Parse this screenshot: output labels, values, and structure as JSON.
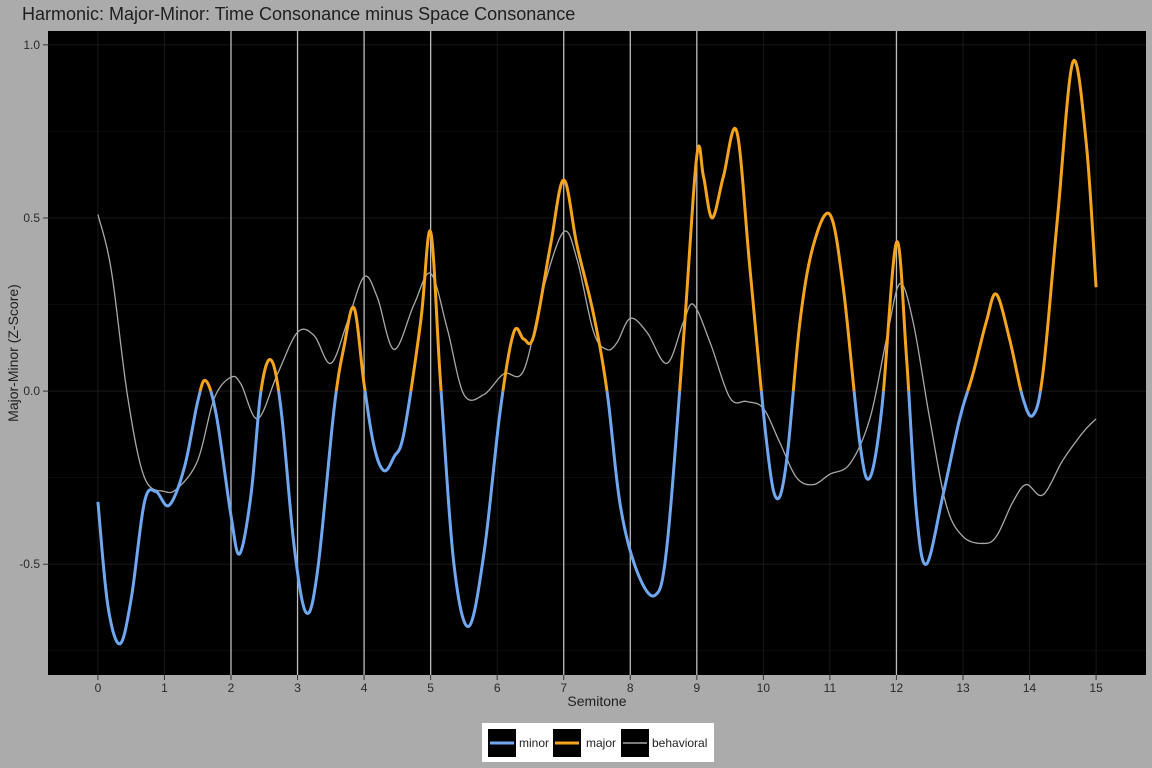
{
  "chart_data": {
    "type": "line",
    "title": "Harmonic: Major-Minor: Time Consonance minus Space Consonance",
    "xlabel": "Semitone",
    "ylabel": "Major-Minor (Z-Score)",
    "xlim": [
      -0.75,
      15.75
    ],
    "ylim": [
      -0.82,
      1.04
    ],
    "x_ticks": [
      0,
      1,
      2,
      3,
      4,
      5,
      6,
      7,
      8,
      9,
      10,
      11,
      12,
      13,
      14,
      15
    ],
    "y_ticks": [
      -0.5,
      0.0,
      0.5,
      1.0
    ],
    "y_tick_labels": [
      "-0.5",
      "0.0",
      "0.5",
      "1.0"
    ],
    "vertical_reference_lines": [
      2,
      3,
      4,
      5,
      7,
      8,
      9,
      12
    ],
    "background": "#000000",
    "grid": true,
    "legend_position": "bottom",
    "colors": {
      "minor": "#6fa8f0",
      "major": "#f5a41e",
      "behavioral": "#a8a8a8",
      "reference_lines": "#bdbdbd"
    },
    "legend": [
      {
        "key": "minor",
        "label": "minor"
      },
      {
        "key": "major",
        "label": "major"
      },
      {
        "key": "behavioral",
        "label": "behavioral"
      }
    ],
    "series": [
      {
        "name": "minor / major",
        "note": "single curve colored major where y > 0, minor where y < 0",
        "points": [
          [
            0,
            -0.32
          ],
          [
            0.15,
            -0.62
          ],
          [
            0.33,
            -0.73
          ],
          [
            0.5,
            -0.6
          ],
          [
            0.7,
            -0.32
          ],
          [
            0.87,
            -0.29
          ],
          [
            1.07,
            -0.33
          ],
          [
            1.3,
            -0.22
          ],
          [
            1.5,
            -0.03
          ],
          [
            1.62,
            0.03
          ],
          [
            1.78,
            -0.07
          ],
          [
            2.0,
            -0.36
          ],
          [
            2.13,
            -0.47
          ],
          [
            2.3,
            -0.3
          ],
          [
            2.45,
            0.0
          ],
          [
            2.6,
            0.09
          ],
          [
            2.75,
            -0.05
          ],
          [
            2.95,
            -0.45
          ],
          [
            3.13,
            -0.64
          ],
          [
            3.3,
            -0.52
          ],
          [
            3.55,
            -0.05
          ],
          [
            3.7,
            0.13
          ],
          [
            3.85,
            0.24
          ],
          [
            4.0,
            0.02
          ],
          [
            4.15,
            -0.16
          ],
          [
            4.3,
            -0.23
          ],
          [
            4.45,
            -0.19
          ],
          [
            4.6,
            -0.12
          ],
          [
            4.85,
            0.2
          ],
          [
            5.0,
            0.46
          ],
          [
            5.15,
            0.02
          ],
          [
            5.35,
            -0.5
          ],
          [
            5.57,
            -0.68
          ],
          [
            5.8,
            -0.47
          ],
          [
            6.05,
            -0.05
          ],
          [
            6.25,
            0.17
          ],
          [
            6.4,
            0.15
          ],
          [
            6.55,
            0.16
          ],
          [
            6.8,
            0.42
          ],
          [
            7.0,
            0.61
          ],
          [
            7.2,
            0.42
          ],
          [
            7.45,
            0.22
          ],
          [
            7.65,
            0.0
          ],
          [
            7.85,
            -0.33
          ],
          [
            8.1,
            -0.52
          ],
          [
            8.37,
            -0.59
          ],
          [
            8.55,
            -0.45
          ],
          [
            8.8,
            0.15
          ],
          [
            9.0,
            0.68
          ],
          [
            9.1,
            0.62
          ],
          [
            9.23,
            0.5
          ],
          [
            9.4,
            0.62
          ],
          [
            9.6,
            0.75
          ],
          [
            9.8,
            0.35
          ],
          [
            10.05,
            -0.15
          ],
          [
            10.2,
            -0.31
          ],
          [
            10.35,
            -0.2
          ],
          [
            10.55,
            0.2
          ],
          [
            10.75,
            0.42
          ],
          [
            11.0,
            0.51
          ],
          [
            11.2,
            0.3
          ],
          [
            11.45,
            -0.15
          ],
          [
            11.6,
            -0.25
          ],
          [
            11.78,
            -0.05
          ],
          [
            12.0,
            0.43
          ],
          [
            12.15,
            0.1
          ],
          [
            12.3,
            -0.35
          ],
          [
            12.45,
            -0.5
          ],
          [
            12.7,
            -0.3
          ],
          [
            12.95,
            -0.08
          ],
          [
            13.15,
            0.05
          ],
          [
            13.35,
            0.2
          ],
          [
            13.5,
            0.28
          ],
          [
            13.7,
            0.15
          ],
          [
            13.9,
            -0.02
          ],
          [
            14.05,
            -0.07
          ],
          [
            14.2,
            0.05
          ],
          [
            14.42,
            0.5
          ],
          [
            14.65,
            0.95
          ],
          [
            14.85,
            0.72
          ],
          [
            15.0,
            0.3
          ]
        ]
      },
      {
        "name": "behavioral",
        "points": [
          [
            0,
            0.51
          ],
          [
            0.2,
            0.35
          ],
          [
            0.45,
            -0.02
          ],
          [
            0.7,
            -0.25
          ],
          [
            1.0,
            -0.29
          ],
          [
            1.2,
            -0.28
          ],
          [
            1.5,
            -0.2
          ],
          [
            1.75,
            -0.02
          ],
          [
            2.0,
            0.04
          ],
          [
            2.15,
            0.02
          ],
          [
            2.4,
            -0.08
          ],
          [
            2.7,
            0.05
          ],
          [
            3.0,
            0.17
          ],
          [
            3.25,
            0.16
          ],
          [
            3.5,
            0.08
          ],
          [
            3.75,
            0.2
          ],
          [
            4.0,
            0.33
          ],
          [
            4.2,
            0.27
          ],
          [
            4.45,
            0.12
          ],
          [
            4.75,
            0.25
          ],
          [
            5.0,
            0.34
          ],
          [
            5.25,
            0.18
          ],
          [
            5.5,
            -0.01
          ],
          [
            5.8,
            -0.01
          ],
          [
            6.1,
            0.05
          ],
          [
            6.4,
            0.06
          ],
          [
            6.7,
            0.3
          ],
          [
            7.0,
            0.46
          ],
          [
            7.2,
            0.38
          ],
          [
            7.45,
            0.17
          ],
          [
            7.65,
            0.12
          ],
          [
            7.8,
            0.14
          ],
          [
            8.0,
            0.21
          ],
          [
            8.25,
            0.17
          ],
          [
            8.55,
            0.08
          ],
          [
            8.8,
            0.2
          ],
          [
            8.95,
            0.25
          ],
          [
            9.2,
            0.14
          ],
          [
            9.5,
            -0.02
          ],
          [
            9.75,
            -0.03
          ],
          [
            10.0,
            -0.05
          ],
          [
            10.25,
            -0.15
          ],
          [
            10.5,
            -0.25
          ],
          [
            10.75,
            -0.27
          ],
          [
            11.0,
            -0.24
          ],
          [
            11.3,
            -0.21
          ],
          [
            11.6,
            -0.08
          ],
          [
            11.85,
            0.15
          ],
          [
            12.05,
            0.31
          ],
          [
            12.25,
            0.2
          ],
          [
            12.5,
            -0.08
          ],
          [
            12.75,
            -0.33
          ],
          [
            13.0,
            -0.42
          ],
          [
            13.3,
            -0.44
          ],
          [
            13.5,
            -0.42
          ],
          [
            13.75,
            -0.32
          ],
          [
            13.95,
            -0.27
          ],
          [
            14.2,
            -0.3
          ],
          [
            14.5,
            -0.2
          ],
          [
            14.8,
            -0.12
          ],
          [
            15.0,
            -0.08
          ]
        ]
      }
    ]
  }
}
